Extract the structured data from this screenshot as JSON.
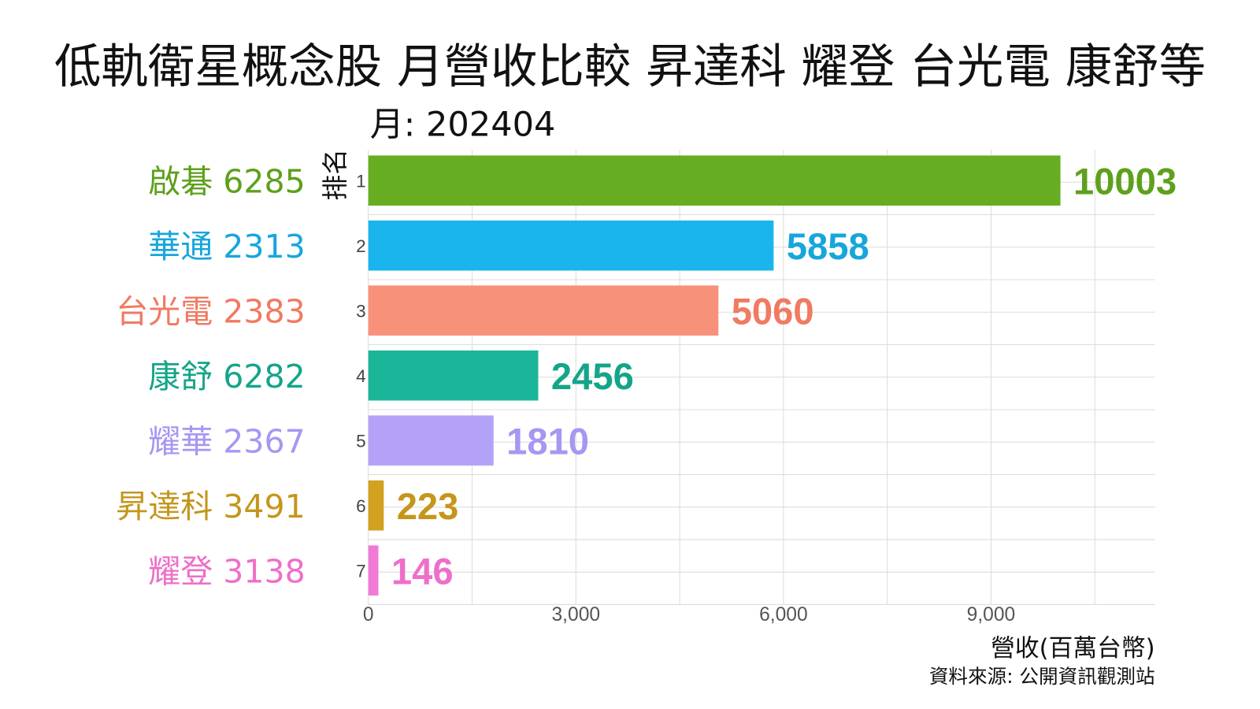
{
  "chart_data": {
    "type": "bar",
    "orientation": "horizontal",
    "title": "低軌衛星概念股 月營收比較 昇達科 耀登 台光電 康舒等",
    "subtitle_label": "月: ",
    "month": "202404",
    "ylabel": "排名",
    "xlabel": "營收(百萬台幣)",
    "source": "資料來源: 公開資訊觀測站",
    "xlim": [
      0,
      11300
    ],
    "x_ticks": [
      0,
      3000,
      6000,
      9000
    ],
    "x_tick_labels": [
      "0",
      "3,000",
      "6,000",
      "9,000"
    ],
    "grid": true,
    "categories": [
      "啟碁 6285",
      "華通 2313",
      "台光電 2383",
      "康舒 6282",
      "耀華 2367",
      "昇達科 3491",
      "耀登 3138"
    ],
    "ranks": [
      "1",
      "2",
      "3",
      "4",
      "5",
      "6",
      "7"
    ],
    "values": [
      10003,
      5858,
      5060,
      2456,
      1810,
      223,
      146
    ],
    "value_labels": [
      "10003",
      "5858",
      "5060",
      "2456",
      "1810",
      "223",
      "146"
    ],
    "bar_colors": [
      "#67ad21",
      "#1ab5ec",
      "#f8917a",
      "#1bb59a",
      "#b3a2f7",
      "#d1a11f",
      "#f07bd4"
    ],
    "label_colors": [
      "#5ea01c",
      "#16a6dc",
      "#f07a62",
      "#14a589",
      "#a896f2",
      "#c4961b",
      "#ee6fc9"
    ]
  }
}
